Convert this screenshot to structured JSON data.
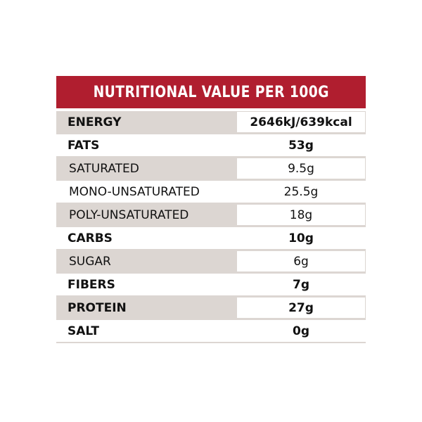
{
  "header": {
    "title": "NUTRITIONAL VALUE PER 100G"
  },
  "table": {
    "rows": [
      [
        "ENERGY",
        "2646kJ/639kcal"
      ],
      [
        "FATS",
        "53g"
      ],
      [
        "SATURATED",
        "9.5g"
      ],
      [
        "MONO-UNSATURATED",
        "25.5g"
      ],
      [
        "POLY-UNSATURATED",
        "18g"
      ],
      [
        "CARBS",
        "10g"
      ],
      [
        "SUGAR",
        "6g"
      ],
      [
        "FIBERS",
        "7g"
      ],
      [
        "PROTEIN",
        "27g"
      ],
      [
        "SALT",
        "0g"
      ]
    ]
  }
}
